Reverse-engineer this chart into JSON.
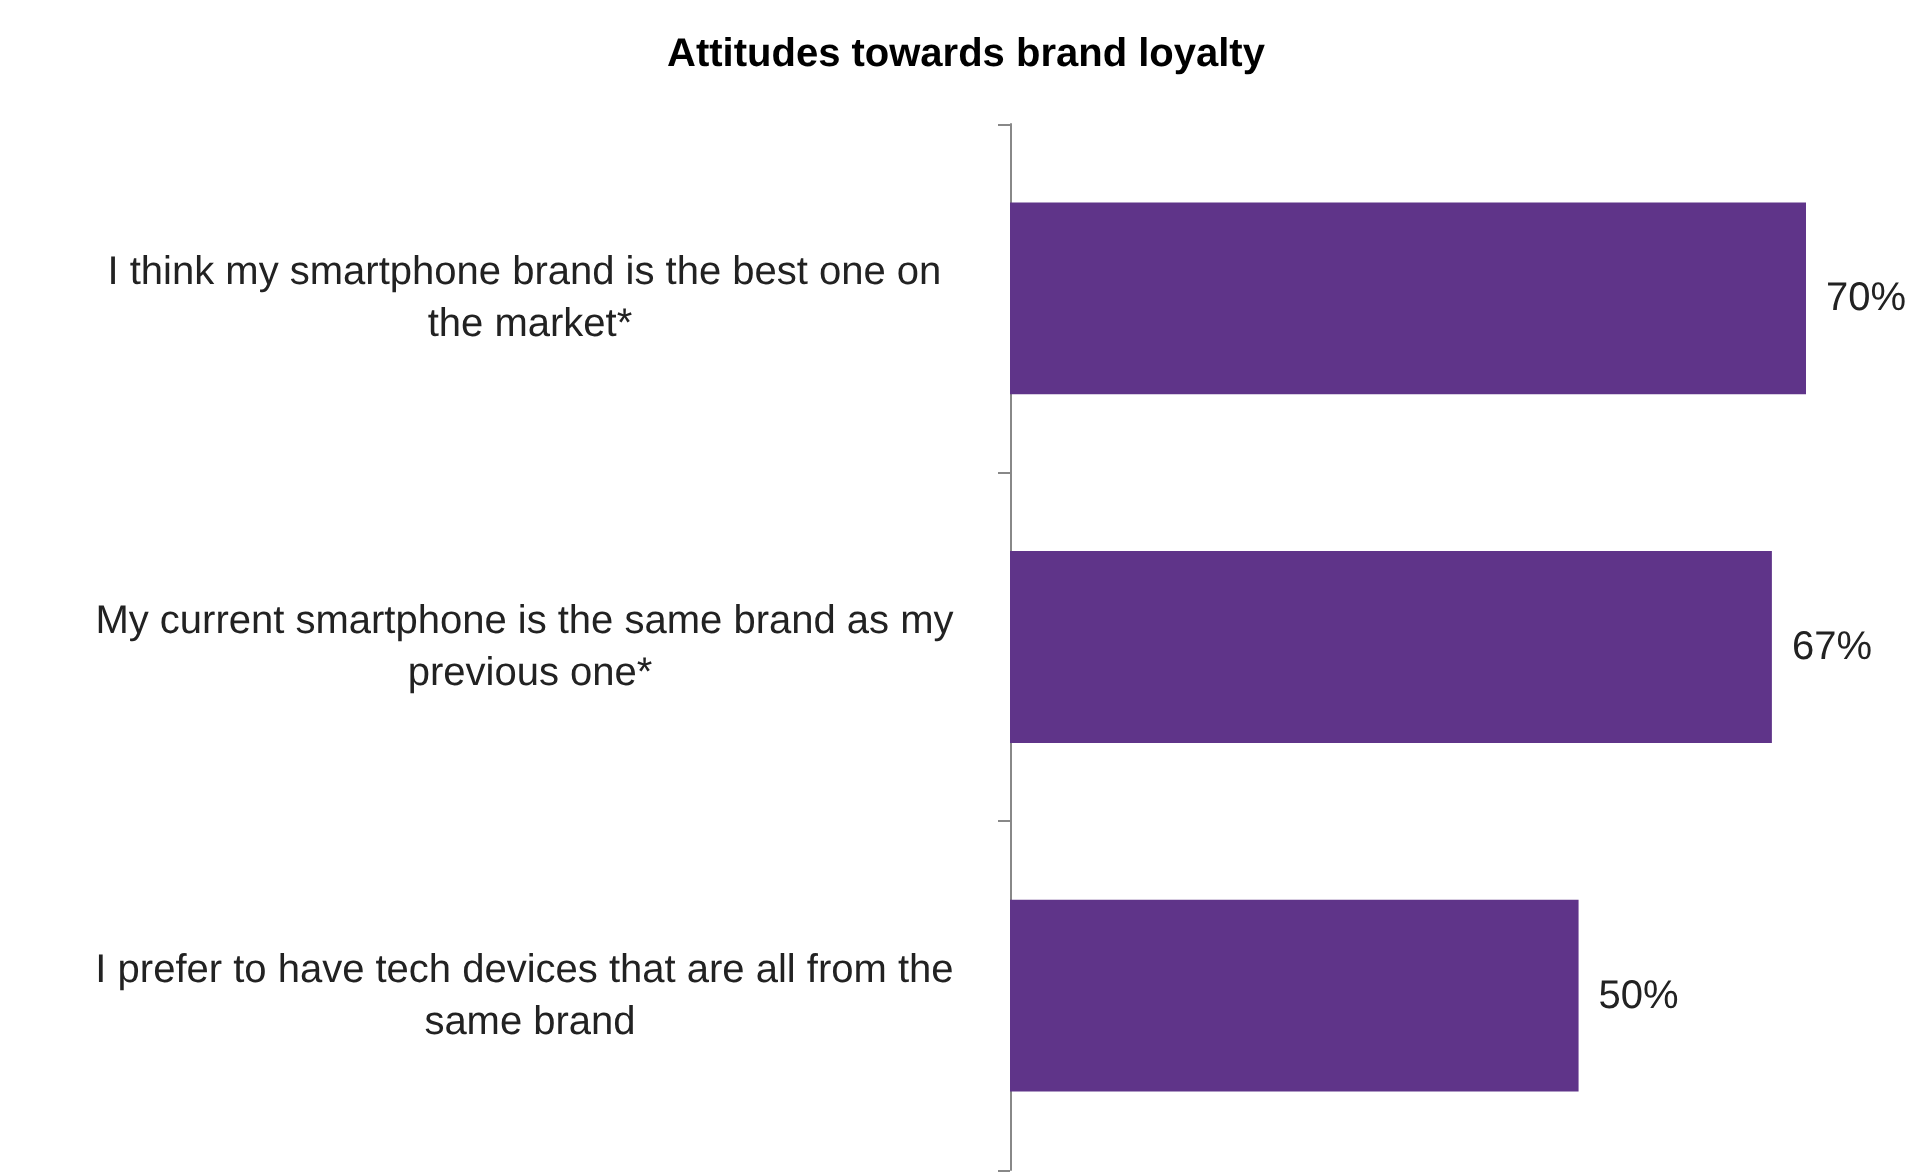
{
  "chart_data": {
    "type": "bar",
    "orientation": "horizontal",
    "title": "Attitudes towards brand loyalty",
    "categories": [
      "I think my smartphone brand is the best one on the market*",
      "My current smartphone is the same brand as my previous one*",
      "I prefer to have tech devices that are all from the same brand"
    ],
    "values": [
      70,
      67,
      50
    ],
    "color": "#5f3489",
    "value_labels": [
      "70%",
      "67%",
      "50%"
    ],
    "tick_labels": "y"
  }
}
